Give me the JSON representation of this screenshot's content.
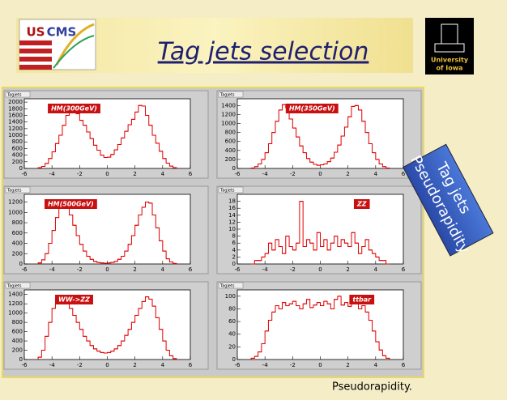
{
  "slide": {
    "title": "Tag jets selection",
    "logo_left": [
      "US",
      "CMS"
    ],
    "logo_right": [
      "University",
      "of Iowa"
    ],
    "side_label": [
      "Tag jets",
      "Pseudorapidity"
    ],
    "footer": "Pseudorapidity."
  },
  "chart_data": [
    {
      "type": "histogram",
      "label": "Tagjets",
      "annotation": "HM(300GeV)",
      "color": "#e00000",
      "xlim": [
        -6,
        6
      ],
      "xticks": [
        -6,
        -4,
        -2,
        0,
        2,
        4,
        6
      ],
      "ylim": [
        0,
        2100
      ],
      "yticks": [
        0,
        200,
        400,
        600,
        800,
        1000,
        1200,
        1400,
        1600,
        1800,
        2000
      ],
      "bins": [
        -5,
        -4.75,
        -4.5,
        -4.25,
        -4,
        -3.75,
        -3.5,
        -3.25,
        -3,
        -2.75,
        -2.5,
        -2.25,
        -2,
        -1.75,
        -1.5,
        -1.25,
        -1,
        -0.75,
        -0.5,
        -0.25,
        0,
        0.25,
        0.5,
        0.75,
        1,
        1.25,
        1.5,
        1.75,
        2,
        2.25,
        2.5,
        2.75,
        3,
        3.25,
        3.5,
        3.75,
        4,
        4.25,
        4.5,
        4.75,
        5
      ],
      "values": [
        20,
        60,
        150,
        300,
        500,
        750,
        1000,
        1300,
        1600,
        1900,
        1850,
        1650,
        1450,
        1300,
        1100,
        900,
        700,
        550,
        400,
        330,
        340,
        420,
        560,
        720,
        920,
        1120,
        1320,
        1480,
        1700,
        1900,
        1880,
        1600,
        1300,
        1000,
        760,
        520,
        300,
        160,
        70,
        25
      ]
    },
    {
      "type": "histogram",
      "label": "Tagjets",
      "annotation": "HM(350GeV)",
      "color": "#e00000",
      "xlim": [
        -6,
        6
      ],
      "xticks": [
        -6,
        -4,
        -2,
        0,
        2,
        4,
        6
      ],
      "ylim": [
        0,
        1550
      ],
      "yticks": [
        0,
        200,
        400,
        600,
        800,
        1000,
        1200,
        1400
      ],
      "bins": [
        -5,
        -4.75,
        -4.5,
        -4.25,
        -4,
        -3.75,
        -3.5,
        -3.25,
        -3,
        -2.75,
        -2.5,
        -2.25,
        -2,
        -1.75,
        -1.5,
        -1.25,
        -1,
        -0.75,
        -0.5,
        -0.25,
        0,
        0.25,
        0.5,
        0.75,
        1,
        1.25,
        1.5,
        1.75,
        2,
        2.25,
        2.5,
        2.75,
        3,
        3.25,
        3.5,
        3.75,
        4,
        4.25,
        4.5,
        4.75,
        5
      ],
      "values": [
        10,
        40,
        100,
        200,
        350,
        550,
        800,
        1050,
        1300,
        1420,
        1350,
        1100,
        900,
        700,
        500,
        350,
        220,
        140,
        90,
        70,
        80,
        100,
        150,
        230,
        360,
        520,
        720,
        920,
        1150,
        1380,
        1400,
        1300,
        1050,
        800,
        550,
        350,
        200,
        100,
        40,
        10
      ]
    },
    {
      "type": "histogram",
      "label": "Tagjets",
      "annotation": "HM(500GeV)",
      "color": "#e00000",
      "xlim": [
        -6,
        6
      ],
      "xticks": [
        -6,
        -4,
        -2,
        0,
        2,
        4,
        6
      ],
      "ylim": [
        0,
        1350
      ],
      "yticks": [
        0,
        200,
        400,
        600,
        800,
        1000,
        1200
      ],
      "bins": [
        -5,
        -4.75,
        -4.5,
        -4.25,
        -4,
        -3.75,
        -3.5,
        -3.25,
        -3,
        -2.75,
        -2.5,
        -2.25,
        -2,
        -1.75,
        -1.5,
        -1.25,
        -1,
        -0.75,
        -0.5,
        -0.25,
        0,
        0.25,
        0.5,
        0.75,
        1,
        1.25,
        1.5,
        1.75,
        2,
        2.25,
        2.5,
        2.75,
        3,
        3.25,
        3.5,
        3.75,
        4,
        4.25,
        4.5,
        4.75,
        5
      ],
      "values": [
        20,
        80,
        200,
        400,
        650,
        900,
        1150,
        1200,
        1100,
        950,
        750,
        550,
        380,
        250,
        150,
        90,
        50,
        30,
        20,
        15,
        20,
        30,
        50,
        90,
        150,
        250,
        380,
        550,
        750,
        950,
        1100,
        1200,
        1180,
        950,
        700,
        450,
        250,
        100,
        40,
        10
      ]
    },
    {
      "type": "histogram",
      "label": "Tagjets",
      "annotation": "ZZ",
      "color": "#e00000",
      "xlim": [
        -6,
        6
      ],
      "xticks": [
        -6,
        -4,
        -2,
        0,
        2,
        4,
        6
      ],
      "ylim": [
        0,
        20
      ],
      "yticks": [
        0,
        2,
        4,
        6,
        8,
        10,
        12,
        14,
        16,
        18
      ],
      "bins": [
        -5,
        -4.75,
        -4.5,
        -4.25,
        -4,
        -3.75,
        -3.5,
        -3.25,
        -3,
        -2.75,
        -2.5,
        -2.25,
        -2,
        -1.75,
        -1.5,
        -1.25,
        -1,
        -0.75,
        -0.5,
        -0.25,
        0,
        0.25,
        0.5,
        0.75,
        1,
        1.25,
        1.5,
        1.75,
        2,
        2.25,
        2.5,
        2.75,
        3,
        3.25,
        3.5,
        3.75,
        4,
        4.25,
        4.5,
        4.75,
        5
      ],
      "values": [
        0,
        1,
        1,
        2,
        3,
        6,
        4,
        7,
        5,
        3,
        8,
        5,
        4,
        6,
        18,
        5,
        7,
        6,
        4,
        9,
        5,
        7,
        4,
        6,
        8,
        5,
        7,
        6,
        5,
        9,
        6,
        3,
        5,
        7,
        4,
        3,
        2,
        1,
        1,
        0
      ]
    },
    {
      "type": "histogram",
      "label": "Tagjets",
      "annotation": "WW->ZZ",
      "color": "#e00000",
      "xlim": [
        -6,
        6
      ],
      "xticks": [
        -6,
        -4,
        -2,
        0,
        2,
        4,
        6
      ],
      "ylim": [
        0,
        1500
      ],
      "yticks": [
        0,
        200,
        400,
        600,
        800,
        1000,
        1200,
        1400
      ],
      "bins": [
        -5,
        -4.75,
        -4.5,
        -4.25,
        -4,
        -3.75,
        -3.5,
        -3.25,
        -3,
        -2.75,
        -2.5,
        -2.25,
        -2,
        -1.75,
        -1.5,
        -1.25,
        -1,
        -0.75,
        -0.5,
        -0.25,
        0,
        0.25,
        0.5,
        0.75,
        1,
        1.25,
        1.5,
        1.75,
        2,
        2.25,
        2.5,
        2.75,
        3,
        3.25,
        3.5,
        3.75,
        4,
        4.25,
        4.5,
        4.75,
        5
      ],
      "values": [
        50,
        200,
        500,
        800,
        1100,
        1300,
        1350,
        1300,
        1200,
        1100,
        950,
        800,
        650,
        500,
        400,
        300,
        230,
        180,
        150,
        140,
        150,
        180,
        230,
        300,
        400,
        520,
        650,
        800,
        950,
        1100,
        1250,
        1350,
        1300,
        1150,
        900,
        650,
        400,
        200,
        80,
        20
      ]
    },
    {
      "type": "histogram",
      "label": "Tagjets",
      "annotation": "ttbar",
      "color": "#e00000",
      "xlim": [
        -6,
        6
      ],
      "xticks": [
        -6,
        -4,
        -2,
        0,
        2,
        4,
        6
      ],
      "ylim": [
        0,
        110
      ],
      "yticks": [
        0,
        20,
        40,
        60,
        80,
        100
      ],
      "bins": [
        -5,
        -4.75,
        -4.5,
        -4.25,
        -4,
        -3.75,
        -3.5,
        -3.25,
        -3,
        -2.75,
        -2.5,
        -2.25,
        -2,
        -1.75,
        -1.5,
        -1.25,
        -1,
        -0.75,
        -0.5,
        -0.25,
        0,
        0.25,
        0.5,
        0.75,
        1,
        1.25,
        1.5,
        1.75,
        2,
        2.25,
        2.5,
        2.75,
        3,
        3.25,
        3.5,
        3.75,
        4,
        4.25,
        4.5,
        4.75,
        5
      ],
      "values": [
        2,
        5,
        12,
        25,
        45,
        62,
        75,
        85,
        80,
        90,
        85,
        88,
        92,
        85,
        80,
        88,
        95,
        82,
        86,
        90,
        85,
        92,
        88,
        80,
        95,
        100,
        86,
        90,
        84,
        88,
        92,
        80,
        85,
        75,
        62,
        45,
        28,
        15,
        6,
        2
      ]
    }
  ]
}
